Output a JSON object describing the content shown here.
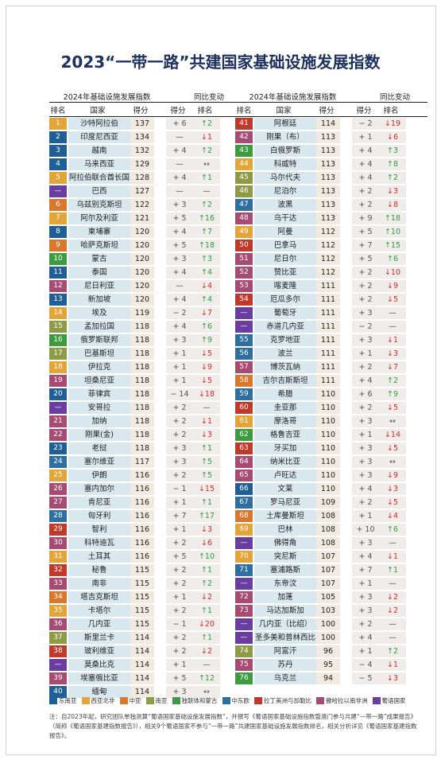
{
  "title": "2023“一带一路”共建国家基础设施发展指数",
  "header": {
    "group_index": "2024年基础设施发展指数",
    "group_change": "同比变动",
    "col_rank": "排名",
    "col_country": "国家",
    "col_score": "得分",
    "col_score_change": "得分",
    "col_rank_change": "排名"
  },
  "regions": {
    "东南亚": "#1f5f96",
    "西亚北非": "#e3a438",
    "中亚": "#d9772c",
    "南亚": "#8e9a46",
    "独联体和蒙古": "#3c9a3f",
    "中东欧": "#2d6fa0",
    "拉丁美洲与加勒比": "#c0392b",
    "撒哈拉以南非洲": "#a84b73",
    "葡语国家": "#6a3ea1"
  },
  "rows_left": [
    {
      "rank": "1",
      "country": "沙特阿拉伯",
      "score": "137",
      "sc": "+ 6",
      "rc": "↑2",
      "dir": "up",
      "color": "#e3a438"
    },
    {
      "rank": "2",
      "country": "印度尼西亚",
      "score": "134",
      "sc": "—",
      "rc": "↓1",
      "dir": "down",
      "color": "#1f5f96"
    },
    {
      "rank": "3",
      "country": "越南",
      "score": "132",
      "sc": "+ 4",
      "rc": "↑2",
      "dir": "up",
      "color": "#1f5f96"
    },
    {
      "rank": "4",
      "country": "马来西亚",
      "score": "129",
      "sc": "—",
      "rc": "↔",
      "dir": "same",
      "color": "#1f5f96"
    },
    {
      "rank": "5",
      "country": "阿拉伯联合酋长国",
      "score": "128",
      "sc": "+ 4",
      "rc": "↑1",
      "dir": "up",
      "color": "#e3a438"
    },
    {
      "rank": "—",
      "country": "巴西",
      "score": "127",
      "sc": "—",
      "rc": "—",
      "dir": "same",
      "color": "#6a3ea1"
    },
    {
      "rank": "6",
      "country": "乌兹别克斯坦",
      "score": "122",
      "sc": "+ 3",
      "rc": "↑2",
      "dir": "up",
      "color": "#d9772c"
    },
    {
      "rank": "7",
      "country": "阿尔及利亚",
      "score": "121",
      "sc": "+ 5",
      "rc": "↑16",
      "dir": "up",
      "color": "#e3a438"
    },
    {
      "rank": "8",
      "country": "柬埔寨",
      "score": "120",
      "sc": "+ 4",
      "rc": "↑7",
      "dir": "up",
      "color": "#1f5f96"
    },
    {
      "rank": "9",
      "country": "哈萨克斯坦",
      "score": "120",
      "sc": "+ 5",
      "rc": "↑18",
      "dir": "up",
      "color": "#d9772c"
    },
    {
      "rank": "10",
      "country": "蒙古",
      "score": "120",
      "sc": "+ 3",
      "rc": "↑3",
      "dir": "up",
      "color": "#3c9a3f"
    },
    {
      "rank": "11",
      "country": "泰国",
      "score": "120",
      "sc": "+ 4",
      "rc": "↑4",
      "dir": "up",
      "color": "#1f5f96"
    },
    {
      "rank": "12",
      "country": "尼日利亚",
      "score": "120",
      "sc": "—",
      "rc": "↓4",
      "dir": "down",
      "color": "#a84b73"
    },
    {
      "rank": "13",
      "country": "新加坡",
      "score": "120",
      "sc": "+ 4",
      "rc": "↑4",
      "dir": "up",
      "color": "#1f5f96"
    },
    {
      "rank": "14",
      "country": "埃及",
      "score": "119",
      "sc": "− 2",
      "rc": "↓7",
      "dir": "down",
      "color": "#e3a438"
    },
    {
      "rank": "15",
      "country": "孟加拉国",
      "score": "118",
      "sc": "+ 4",
      "rc": "↑6",
      "dir": "up",
      "color": "#8e9a46"
    },
    {
      "rank": "16",
      "country": "俄罗斯联邦",
      "score": "118",
      "sc": "+ 3",
      "rc": "↑9",
      "dir": "up",
      "color": "#3c9a3f"
    },
    {
      "rank": "17",
      "country": "巴基斯坦",
      "score": "118",
      "sc": "+ 1",
      "rc": "↓5",
      "dir": "down",
      "color": "#8e9a46"
    },
    {
      "rank": "18",
      "country": "伊拉克",
      "score": "118",
      "sc": "+ 1",
      "rc": "↓9",
      "dir": "down",
      "color": "#e3a438"
    },
    {
      "rank": "19",
      "country": "坦桑尼亚",
      "score": "118",
      "sc": "+ 1",
      "rc": "↓5",
      "dir": "down",
      "color": "#a84b73"
    },
    {
      "rank": "20",
      "country": "菲律宾",
      "score": "118",
      "sc": "− 14",
      "rc": "↓18",
      "dir": "down",
      "color": "#1f5f96"
    },
    {
      "rank": "—",
      "country": "安哥拉",
      "score": "118",
      "sc": "+ 2",
      "rc": "—",
      "dir": "same",
      "color": "#6a3ea1"
    },
    {
      "rank": "21",
      "country": "加纳",
      "score": "118",
      "sc": "+ 2",
      "rc": "↓1",
      "dir": "down",
      "color": "#a84b73"
    },
    {
      "rank": "22",
      "country": "刚果(金)",
      "score": "118",
      "sc": "+ 2",
      "rc": "↓3",
      "dir": "down",
      "color": "#a84b73"
    },
    {
      "rank": "23",
      "country": "老挝",
      "score": "118",
      "sc": "+ 3",
      "rc": "↑1",
      "dir": "up",
      "color": "#1f5f96"
    },
    {
      "rank": "24",
      "country": "塞尔维亚",
      "score": "117",
      "sc": "+ 3",
      "rc": "↑5",
      "dir": "up",
      "color": "#2d6fa0"
    },
    {
      "rank": "25",
      "country": "伊朗",
      "score": "116",
      "sc": "+ 2",
      "rc": "↑5",
      "dir": "up",
      "color": "#e3a438"
    },
    {
      "rank": "26",
      "country": "塞内加尔",
      "score": "116",
      "sc": "− 1",
      "rc": "↓15",
      "dir": "down",
      "color": "#a84b73"
    },
    {
      "rank": "27",
      "country": "肯尼亚",
      "score": "116",
      "sc": "+ 1",
      "rc": "↑1",
      "dir": "up",
      "color": "#a84b73"
    },
    {
      "rank": "28",
      "country": "匈牙利",
      "score": "116",
      "sc": "+ 7",
      "rc": "↑17",
      "dir": "up",
      "color": "#2d6fa0"
    },
    {
      "rank": "29",
      "country": "智利",
      "score": "116",
      "sc": "+ 1",
      "rc": "↓3",
      "dir": "down",
      "color": "#c0392b"
    },
    {
      "rank": "30",
      "country": "科特迪瓦",
      "score": "116",
      "sc": "+ 2",
      "rc": "↓6",
      "dir": "down",
      "color": "#a84b73"
    },
    {
      "rank": "31",
      "country": "土耳其",
      "score": "116",
      "sc": "+ 5",
      "rc": "↑10",
      "dir": "up",
      "color": "#e3a438"
    },
    {
      "rank": "32",
      "country": "秘鲁",
      "score": "115",
      "sc": "+ 2",
      "rc": "↑1",
      "dir": "up",
      "color": "#c0392b"
    },
    {
      "rank": "33",
      "country": "南非",
      "score": "115",
      "sc": "+ 2",
      "rc": "↑2",
      "dir": "up",
      "color": "#a84b73"
    },
    {
      "rank": "34",
      "country": "塔吉克斯坦",
      "score": "115",
      "sc": "+ 1",
      "rc": "↓2",
      "dir": "down",
      "color": "#d9772c"
    },
    {
      "rank": "35",
      "country": "卡塔尔",
      "score": "115",
      "sc": "+ 2",
      "rc": "↑1",
      "dir": "up",
      "color": "#e3a438"
    },
    {
      "rank": "36",
      "country": "几内亚",
      "score": "115",
      "sc": "− 1",
      "rc": "↓20",
      "dir": "down",
      "color": "#a84b73"
    },
    {
      "rank": "37",
      "country": "斯里兰卡",
      "score": "114",
      "sc": "+ 2",
      "rc": "↑1",
      "dir": "up",
      "color": "#8e9a46"
    },
    {
      "rank": "38",
      "country": "玻利维亚",
      "score": "114",
      "sc": "+ 2",
      "rc": "↓2",
      "dir": "down",
      "color": "#c0392b"
    },
    {
      "rank": "—",
      "country": "莫桑比克",
      "score": "114",
      "sc": "+ 1",
      "rc": "—",
      "dir": "same",
      "color": "#6a3ea1"
    },
    {
      "rank": "39",
      "country": "埃塞俄比亚",
      "score": "114",
      "sc": "+ 5",
      "rc": "↑12",
      "dir": "up",
      "color": "#a84b73"
    },
    {
      "rank": "40",
      "country": "缅甸",
      "score": "114",
      "sc": "+ 3",
      "rc": "↔",
      "dir": "same",
      "color": "#1f5f96"
    }
  ],
  "rows_right": [
    {
      "rank": "41",
      "country": "阿根廷",
      "score": "114",
      "sc": "− 2",
      "rc": "↓19",
      "dir": "down",
      "color": "#c0392b"
    },
    {
      "rank": "42",
      "country": "刚果（布）",
      "score": "113",
      "sc": "+ 1",
      "rc": "↓6",
      "dir": "down",
      "color": "#a84b73"
    },
    {
      "rank": "43",
      "country": "白俄罗斯",
      "score": "113",
      "sc": "+ 4",
      "rc": "↑3",
      "dir": "up",
      "color": "#3c9a3f"
    },
    {
      "rank": "44",
      "country": "科威特",
      "score": "113",
      "sc": "+ 4",
      "rc": "↑8",
      "dir": "up",
      "color": "#e3a438"
    },
    {
      "rank": "45",
      "country": "马尔代夫",
      "score": "113",
      "sc": "+ 4",
      "rc": "↑2",
      "dir": "up",
      "color": "#8e9a46"
    },
    {
      "rank": "46",
      "country": "尼泊尔",
      "score": "113",
      "sc": "+ 2",
      "rc": "↓3",
      "dir": "down",
      "color": "#8e9a46"
    },
    {
      "rank": "47",
      "country": "波黑",
      "score": "113",
      "sc": "+ 2",
      "rc": "↓8",
      "dir": "down",
      "color": "#2d6fa0"
    },
    {
      "rank": "48",
      "country": "乌干达",
      "score": "113",
      "sc": "+ 9",
      "rc": "↑18",
      "dir": "up",
      "color": "#a84b73"
    },
    {
      "rank": "49",
      "country": "阿曼",
      "score": "112",
      "sc": "+ 5",
      "rc": "↑10",
      "dir": "up",
      "color": "#e3a438"
    },
    {
      "rank": "50",
      "country": "巴拿马",
      "score": "112",
      "sc": "+ 7",
      "rc": "↑15",
      "dir": "up",
      "color": "#c0392b"
    },
    {
      "rank": "51",
      "country": "尼日尔",
      "score": "112",
      "sc": "+ 5",
      "rc": "↑6",
      "dir": "up",
      "color": "#a84b73"
    },
    {
      "rank": "52",
      "country": "赞比亚",
      "score": "112",
      "sc": "+ 2",
      "rc": "↓10",
      "dir": "down",
      "color": "#a84b73"
    },
    {
      "rank": "53",
      "country": "喀麦隆",
      "score": "111",
      "sc": "+ 2",
      "rc": "↓9",
      "dir": "down",
      "color": "#a84b73"
    },
    {
      "rank": "54",
      "country": "厄瓜多尔",
      "score": "111",
      "sc": "+ 2",
      "rc": "↓5",
      "dir": "down",
      "color": "#c0392b"
    },
    {
      "rank": "—",
      "country": "葡萄牙",
      "score": "111",
      "sc": "+ 3",
      "rc": "—",
      "dir": "same",
      "color": "#6a3ea1"
    },
    {
      "rank": "—",
      "country": "赤道几内亚",
      "score": "111",
      "sc": "− 2",
      "rc": "—",
      "dir": "same",
      "color": "#6a3ea1"
    },
    {
      "rank": "55",
      "country": "克罗地亚",
      "score": "111",
      "sc": "+ 3",
      "rc": "↓1",
      "dir": "down",
      "color": "#2d6fa0"
    },
    {
      "rank": "56",
      "country": "波兰",
      "score": "111",
      "sc": "+ 1",
      "rc": "↓3",
      "dir": "down",
      "color": "#2d6fa0"
    },
    {
      "rank": "57",
      "country": "博茨瓦纳",
      "score": "111",
      "sc": "+ 2",
      "rc": "↓7",
      "dir": "down",
      "color": "#a84b73"
    },
    {
      "rank": "58",
      "country": "吉尔吉斯斯坦",
      "score": "111",
      "sc": "+ 4",
      "rc": "↑2",
      "dir": "up",
      "color": "#d9772c"
    },
    {
      "rank": "59",
      "country": "希腊",
      "score": "110",
      "sc": "+ 6",
      "rc": "↑9",
      "dir": "up",
      "color": "#2d6fa0"
    },
    {
      "rank": "60",
      "country": "圭亚那",
      "score": "110",
      "sc": "+ 2",
      "rc": "↓5",
      "dir": "down",
      "color": "#c0392b"
    },
    {
      "rank": "61",
      "country": "摩洛哥",
      "score": "110",
      "sc": "+ 3",
      "rc": "↔",
      "dir": "same",
      "color": "#e3a438"
    },
    {
      "rank": "62",
      "country": "格鲁吉亚",
      "score": "110",
      "sc": "+ 1",
      "rc": "↓14",
      "dir": "down",
      "color": "#3c9a3f"
    },
    {
      "rank": "63",
      "country": "牙买加",
      "score": "110",
      "sc": "+ 3",
      "rc": "↓5",
      "dir": "down",
      "color": "#c0392b"
    },
    {
      "rank": "64",
      "country": "纳米比亚",
      "score": "110",
      "sc": "+ 3",
      "rc": "↔",
      "dir": "same",
      "color": "#a84b73"
    },
    {
      "rank": "65",
      "country": "卢旺达",
      "score": "110",
      "sc": "+ 3",
      "rc": "↓9",
      "dir": "down",
      "color": "#a84b73"
    },
    {
      "rank": "66",
      "country": "文莱",
      "score": "110",
      "sc": "+ 4",
      "rc": "↓3",
      "dir": "down",
      "color": "#1f5f96"
    },
    {
      "rank": "67",
      "country": "罗马尼亚",
      "score": "109",
      "sc": "+ 2",
      "rc": "↓5",
      "dir": "down",
      "color": "#2d6fa0"
    },
    {
      "rank": "68",
      "country": "土库曼斯坦",
      "score": "108",
      "sc": "+ 1",
      "rc": "↓4",
      "dir": "down",
      "color": "#d9772c"
    },
    {
      "rank": "69",
      "country": "巴林",
      "score": "108",
      "sc": "+ 10",
      "rc": "↑6",
      "dir": "up",
      "color": "#e3a438"
    },
    {
      "rank": "—",
      "country": "佛得角",
      "score": "108",
      "sc": "+ 3",
      "rc": "—",
      "dir": "same",
      "color": "#6a3ea1"
    },
    {
      "rank": "70",
      "country": "突尼斯",
      "score": "107",
      "sc": "+ 4",
      "rc": "↓1",
      "dir": "down",
      "color": "#e3a438"
    },
    {
      "rank": "71",
      "country": "塞浦路斯",
      "score": "107",
      "sc": "+ 7",
      "rc": "↑1",
      "dir": "up",
      "color": "#2d6fa0"
    },
    {
      "rank": "—",
      "country": "东帝汶",
      "score": "107",
      "sc": "+ 1",
      "rc": "—",
      "dir": "same",
      "color": "#6a3ea1"
    },
    {
      "rank": "72",
      "country": "加蓬",
      "score": "105",
      "sc": "+ 3",
      "rc": "↓2",
      "dir": "down",
      "color": "#a84b73"
    },
    {
      "rank": "73",
      "country": "马达加斯加",
      "score": "103",
      "sc": "+ 3",
      "rc": "↓2",
      "dir": "down",
      "color": "#a84b73"
    },
    {
      "rank": "—",
      "country": "几内亚（比绍）",
      "score": "100",
      "sc": "+ 2",
      "rc": "—",
      "dir": "same",
      "color": "#6a3ea1"
    },
    {
      "rank": "—",
      "country": "圣多美和普林西比",
      "score": "100",
      "sc": "+ 4",
      "rc": "—",
      "dir": "same",
      "color": "#6a3ea1"
    },
    {
      "rank": "74",
      "country": "阿富汗",
      "score": "96",
      "sc": "+ 1",
      "rc": "↑2",
      "dir": "up",
      "color": "#8e9a46"
    },
    {
      "rank": "75",
      "country": "苏丹",
      "score": "95",
      "sc": "− 4",
      "rc": "↓1",
      "dir": "down",
      "color": "#a84b73"
    },
    {
      "rank": "76",
      "country": "乌克兰",
      "score": "94",
      "sc": "− 5",
      "rc": "↓3",
      "dir": "down",
      "color": "#3c9a3f"
    }
  ],
  "legend": [
    {
      "label": "东南亚",
      "color": "#1f5f96"
    },
    {
      "label": "西亚北非",
      "color": "#e3a438"
    },
    {
      "label": "中亚",
      "color": "#d9772c"
    },
    {
      "label": "南亚",
      "color": "#8e9a46"
    },
    {
      "label": "独联体和蒙古",
      "color": "#3c9a3f"
    },
    {
      "label": "中东欧",
      "color": "#2d6fa0"
    },
    {
      "label": "拉丁美洲与加勒比",
      "color": "#c0392b"
    },
    {
      "label": "撒哈拉以南非洲",
      "color": "#a84b73"
    },
    {
      "label": "葡语国家",
      "color": "#6a3ea1"
    }
  ],
  "note": "注：自2023年起，研究团队单独测算“葡语国家基础设施发展指数”，并撰写《葡语国家基础设施指数暨澳门参与共建“一带一路”成果报告》（简称《葡语国家基建指数报告》），相关9个葡语国家不参与“一带一路”共建国家基础设施发展指数排名，相关分析详见《葡语国家基建指数报告》。"
}
